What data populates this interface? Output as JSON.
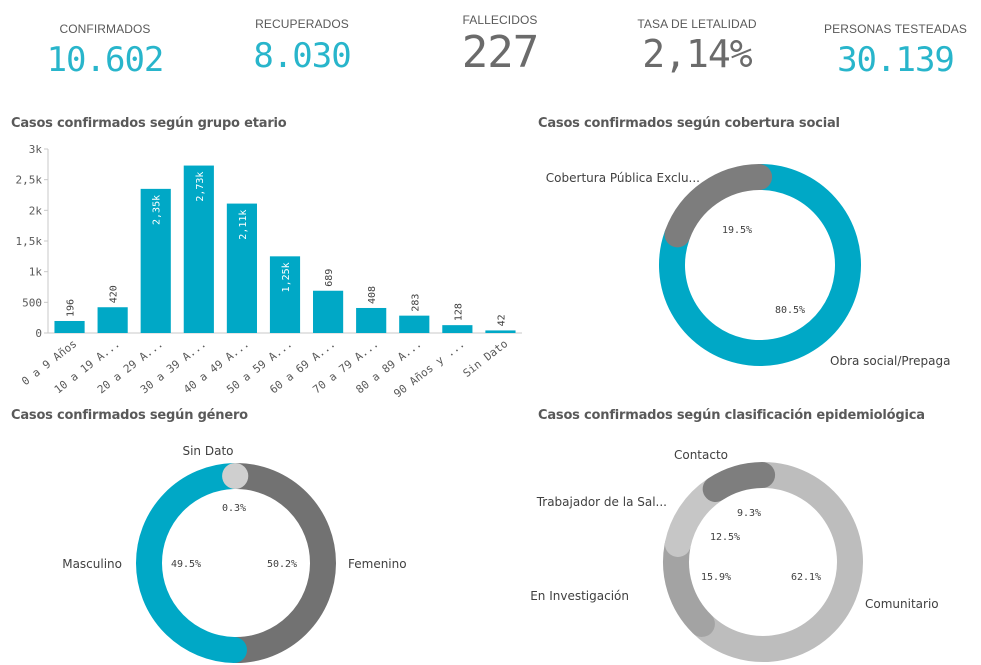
{
  "kpis": [
    {
      "label": "CONFIRMADOS",
      "value": "10.602",
      "color": "#28b5cb"
    },
    {
      "label": "RECUPERADOS",
      "value": "8.030",
      "color": "#28b5cb"
    },
    {
      "label": "FALLECIDOS",
      "value": "227",
      "color": "#6b6b6b"
    },
    {
      "label": "TASA DE LETALIDAD",
      "value": "2,14%",
      "color": "#6b6b6b"
    },
    {
      "label": "PERSONAS TESTEADAS",
      "value": "30.139",
      "color": "#28b5cb"
    }
  ],
  "chart_data": [
    {
      "type": "bar",
      "title": "Casos confirmados según grupo etario",
      "categories": [
        "0 a 9 Años",
        "10 a 19 A...",
        "20 a 29 A...",
        "30 a 39 A...",
        "40 a 49 A...",
        "50 a 59 A...",
        "60 a 69 A...",
        "70 a 79 A...",
        "80 a 89 A...",
        "90 Años y ...",
        "Sin Dato"
      ],
      "values": [
        196,
        420,
        2350,
        2730,
        2110,
        1250,
        689,
        408,
        283,
        128,
        42
      ],
      "data_labels": [
        "196",
        "420",
        "2,35k",
        "2,73k",
        "2,11k",
        "1,25k",
        "689",
        "408",
        "283",
        "128",
        "42"
      ],
      "yticks": [
        0,
        500,
        1000,
        1500,
        2000,
        2500,
        3000
      ],
      "ytick_labels": [
        "0",
        "500",
        "1k",
        "1,5k",
        "2k",
        "2,5k",
        "3k"
      ],
      "ylim": [
        0,
        3000
      ],
      "color": "#00a8c6"
    },
    {
      "type": "pie",
      "title": "Casos confirmados según cobertura social",
      "donut": true,
      "slices": [
        {
          "label": "Obra social/Prepaga",
          "value": 80.5,
          "pct": "80.5%",
          "color": "#00a8c6"
        },
        {
          "label": "Cobertura Pública Exclu...",
          "value": 19.5,
          "pct": "19.5%",
          "color": "#7d7d7d"
        }
      ]
    },
    {
      "type": "pie",
      "title": "Casos confirmados según género",
      "donut": true,
      "slices": [
        {
          "label": "Femenino",
          "value": 50.2,
          "pct": "50.2%",
          "color": "#727272"
        },
        {
          "label": "Masculino",
          "value": 49.5,
          "pct": "49.5%",
          "color": "#00a8c6"
        },
        {
          "label": "Sin Dato",
          "value": 0.3,
          "pct": "0.3%",
          "color": "#cfcfcf"
        }
      ]
    },
    {
      "type": "pie",
      "title": "Casos confirmados según clasificación epidemiológica",
      "donut": true,
      "slices": [
        {
          "label": "Comunitario",
          "value": 62.1,
          "pct": "62.1%",
          "color": "#bdbdbd"
        },
        {
          "label": "En Investigación",
          "value": 15.9,
          "pct": "15.9%",
          "color": "#a3a3a3"
        },
        {
          "label": "Trabajador de la Sal...",
          "value": 12.5,
          "pct": "12.5%",
          "color": "#c6c6c6"
        },
        {
          "label": "Contacto",
          "value": 9.3,
          "pct": "9.3%",
          "color": "#7e7e7e"
        }
      ]
    }
  ]
}
